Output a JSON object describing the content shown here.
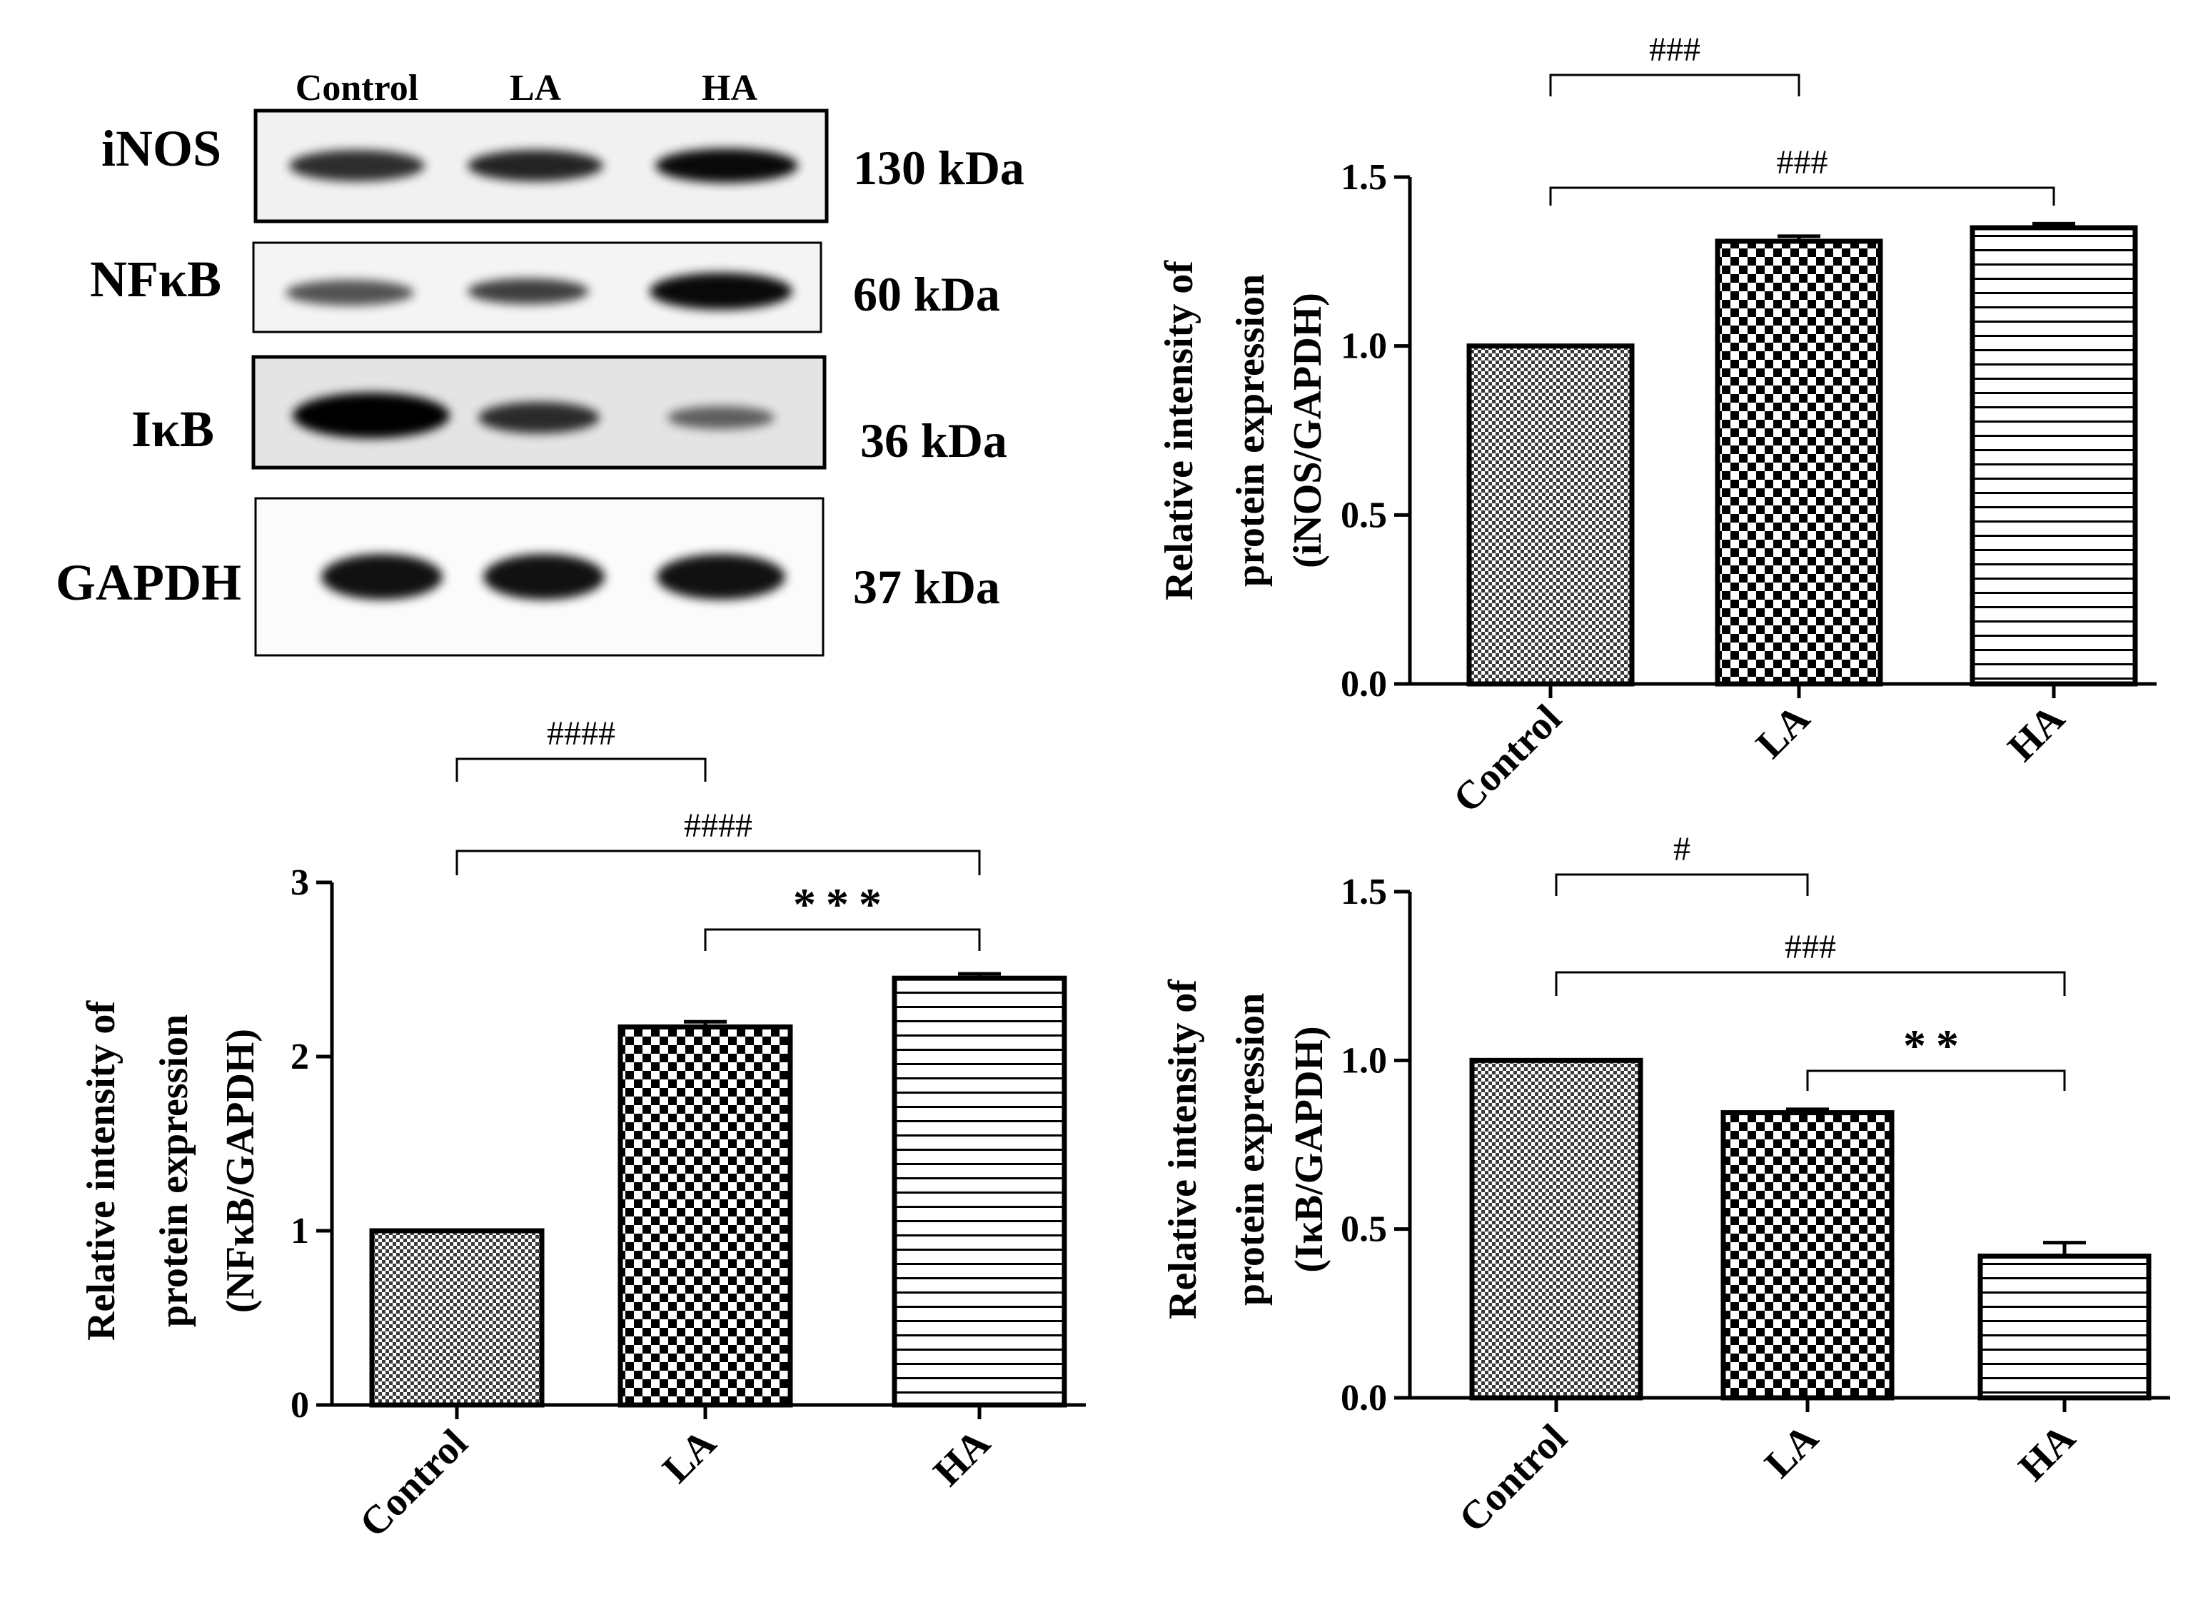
{
  "blot": {
    "lanes": [
      "Control",
      "LA",
      "HA"
    ],
    "rows": [
      {
        "protein": "iNOS",
        "mw": "130 kDa",
        "bands": [
          0.75,
          0.8,
          0.95
        ]
      },
      {
        "protein": "NFκB",
        "mw": "60 kDa",
        "bands": [
          0.55,
          0.65,
          0.95
        ]
      },
      {
        "protein": "IκB",
        "mw": "36 kDa",
        "bands": [
          1.0,
          0.75,
          0.45
        ]
      },
      {
        "protein": "GAPDH",
        "mw": "37 kDa",
        "bands": [
          0.9,
          0.9,
          0.9
        ]
      }
    ]
  },
  "colors": {
    "ink": "#000000",
    "background": "#ffffff",
    "blot_bg": "#eeeeee"
  },
  "chart_data": [
    {
      "type": "bar",
      "categories": [
        "Control",
        "LA",
        "HA"
      ],
      "values": [
        1.0,
        1.31,
        1.35
      ],
      "errors": [
        0,
        0.015,
        0.012
      ],
      "patterns": [
        "fine-check",
        "check",
        "hlines"
      ],
      "ylabel_lines": [
        "Relative intensity of",
        "protein expression",
        "(iNOS/GAPDH)"
      ],
      "ylim": [
        0,
        1.5
      ],
      "yticks": [
        "0.0",
        "0.5",
        "1.0",
        "1.5"
      ],
      "significance": [
        {
          "from": 0,
          "to": 1,
          "label": "###"
        },
        {
          "from": 0,
          "to": 2,
          "label": "###"
        }
      ]
    },
    {
      "type": "bar",
      "categories": [
        "Control",
        "LA",
        "HA"
      ],
      "values": [
        1.0,
        2.17,
        2.45
      ],
      "errors": [
        0,
        0.03,
        0.025
      ],
      "patterns": [
        "fine-check",
        "check",
        "hlines"
      ],
      "ylabel_lines": [
        "Relative intensity of",
        "protein expression",
        "(NFκB/GAPDH)"
      ],
      "ylim": [
        0,
        3
      ],
      "yticks": [
        "0",
        "1",
        "2",
        "3"
      ],
      "significance": [
        {
          "from": 0,
          "to": 1,
          "label": "####"
        },
        {
          "from": 0,
          "to": 2,
          "label": "####"
        },
        {
          "from": 1,
          "to": 2,
          "label": "***"
        }
      ]
    },
    {
      "type": "bar",
      "categories": [
        "Control",
        "LA",
        "HA"
      ],
      "values": [
        1.0,
        0.845,
        0.42
      ],
      "errors": [
        0,
        0.01,
        0.04
      ],
      "patterns": [
        "fine-check",
        "check",
        "hlines"
      ],
      "ylabel_lines": [
        "Relative intensity of",
        "protein expression",
        "(IκB/GAPDH)"
      ],
      "ylim": [
        0,
        1.5
      ],
      "yticks": [
        "0.0",
        "0.5",
        "1.0",
        "1.5"
      ],
      "significance": [
        {
          "from": 0,
          "to": 1,
          "label": "#"
        },
        {
          "from": 0,
          "to": 2,
          "label": "###"
        },
        {
          "from": 1,
          "to": 2,
          "label": "**"
        }
      ]
    }
  ]
}
